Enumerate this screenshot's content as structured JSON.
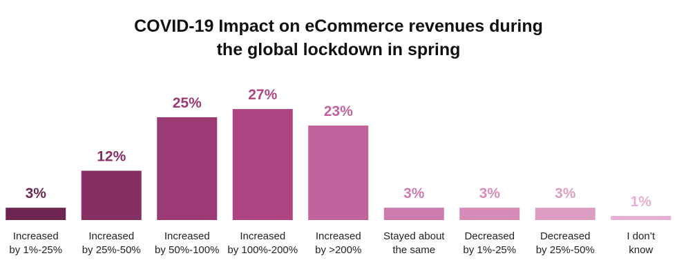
{
  "chart_data": {
    "type": "bar",
    "title": [
      "COVID-19 Impact on eCommerce revenues during",
      "the global lockdown in spring"
    ],
    "categories": [
      "Increased\nby 1%-25%",
      "Increased\nby 25%-50%",
      "Increased\nby 50%-100%",
      "Increased\nby 100%-200%",
      "Increased\nby >200%",
      "Stayed about\nthe same",
      "Decreased\nby 1%-25%",
      "Decreased\nby 25%-50%",
      "I don’t\nknow"
    ],
    "values": [
      3,
      12,
      25,
      27,
      23,
      3,
      3,
      3,
      1
    ],
    "value_labels": [
      "3%",
      "12%",
      "25%",
      "27%",
      "23%",
      "3%",
      "3%",
      "3%",
      "1%"
    ],
    "colors": [
      "#6d2552",
      "#862f63",
      "#9b3a73",
      "#ae4583",
      "#c2629b",
      "#cd7aad",
      "#d68bb8",
      "#dd9dc3",
      "#e5b0d1"
    ]
  }
}
